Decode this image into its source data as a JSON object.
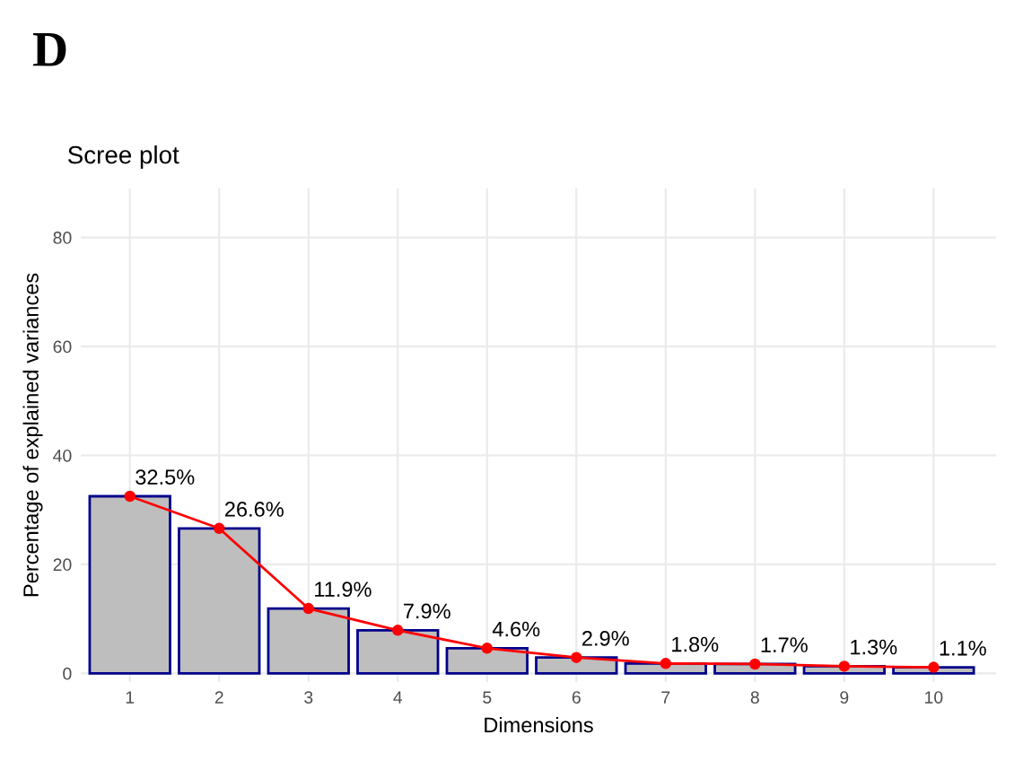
{
  "chart_data": {
    "type": "bar",
    "title": "Scree plot",
    "xlabel": "Dimensions",
    "ylabel": "Percentage of explained variances",
    "annotations": [
      "D"
    ],
    "categories": [
      "1",
      "2",
      "3",
      "4",
      "5",
      "6",
      "7",
      "8",
      "9",
      "10"
    ],
    "series": [
      {
        "color": "#bebebe",
        "values": [
          32.5,
          26.6,
          11.9,
          7.9,
          4.6,
          2.9,
          1.8,
          1.7,
          1.3,
          1.1
        ]
      },
      {
        "type": "line",
        "color": "#ff0000",
        "values": [
          32.5,
          26.6,
          11.9,
          7.9,
          4.6,
          2.9,
          1.8,
          1.7,
          1.3,
          1.1
        ],
        "value_labels": [
          "32.5%",
          "26.6%",
          "11.9%",
          "7.9%",
          "4.6%",
          "2.9%",
          "1.8%",
          "1.7%",
          "1.3%",
          "1.1%"
        ]
      }
    ],
    "ylim": [
      -1.6,
      89
    ],
    "yticks": [
      0,
      20,
      40,
      60,
      80
    ],
    "grid": true,
    "marker": "circle",
    "line_style": "solid"
  }
}
